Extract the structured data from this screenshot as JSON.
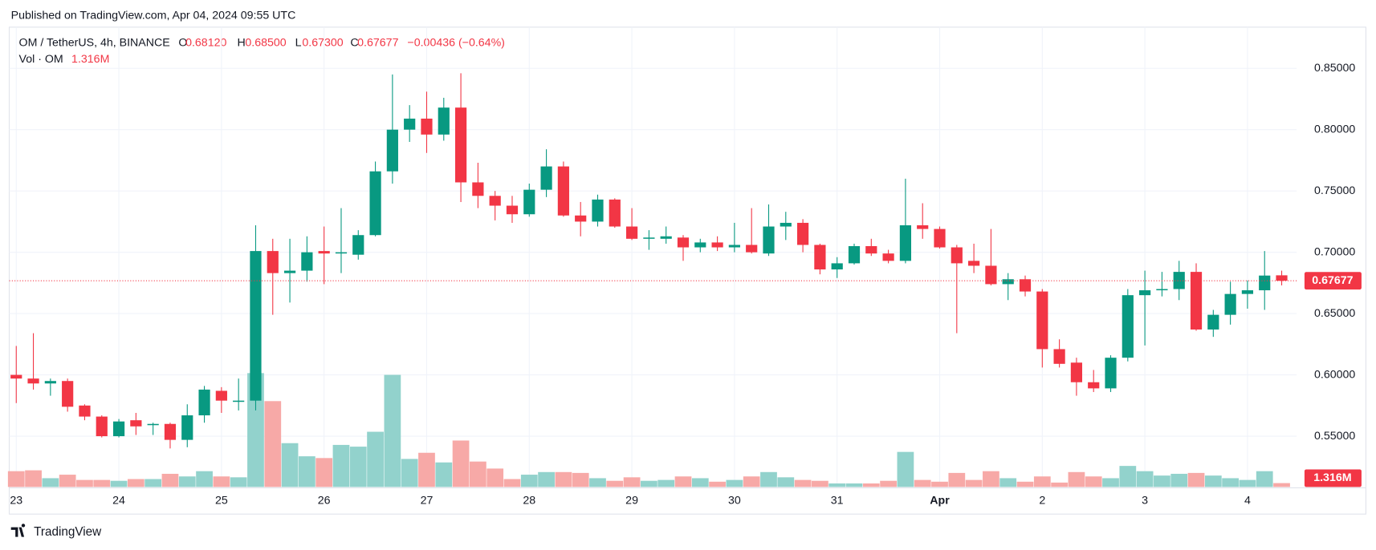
{
  "published": "Published on TradingView.com, Apr 04, 2024 09:55 UTC",
  "footer": "TradingView",
  "chart_data": {
    "type": "candlestick",
    "legend": {
      "symbol": "OM / TetherUS, 4h, BINANCE",
      "ohlc": [
        {
          "label": "O",
          "value": "0.68120"
        },
        {
          "label": "H",
          "value": "0.68500"
        },
        {
          "label": "L",
          "value": "0.67300"
        },
        {
          "label": "C",
          "value": "0.67677"
        }
      ],
      "change": "−0.00436 (−0.64%)",
      "volume_name": "Vol · OM",
      "volume": "1.316M"
    },
    "categories": [
      "23",
      null,
      null,
      null,
      null,
      null,
      "24",
      null,
      null,
      null,
      null,
      null,
      "25",
      null,
      null,
      null,
      null,
      null,
      "26",
      null,
      null,
      null,
      null,
      null,
      "27",
      null,
      null,
      null,
      null,
      null,
      "28",
      null,
      null,
      null,
      null,
      null,
      "29",
      null,
      null,
      null,
      null,
      null,
      "30",
      null,
      null,
      null,
      null,
      null,
      "31",
      null,
      null,
      null,
      null,
      null,
      "Apr",
      null,
      null,
      null,
      null,
      null,
      "2",
      null,
      null,
      null,
      null,
      null,
      "3",
      null,
      null,
      null,
      null,
      null,
      "4",
      null,
      null
    ],
    "open": [
      0.6,
      0.597,
      0.593,
      0.595,
      0.575,
      0.566,
      0.55,
      0.563,
      0.559,
      0.56,
      0.547,
      0.567,
      0.587,
      0.578,
      0.579,
      0.701,
      0.683,
      0.685,
      0.701,
      0.699,
      0.698,
      0.714,
      0.766,
      0.8,
      0.809,
      0.796,
      0.818,
      0.757,
      0.746,
      0.738,
      0.731,
      0.751,
      0.77,
      0.73,
      0.725,
      0.743,
      0.721,
      0.711,
      0.711,
      0.712,
      0.704,
      0.708,
      0.704,
      0.706,
      0.699,
      0.721,
      0.724,
      0.706,
      0.686,
      0.691,
      0.705,
      0.699,
      0.693,
      0.722,
      0.719,
      0.704,
      0.693,
      0.689,
      0.674,
      0.678,
      0.668,
      0.621,
      0.61,
      0.594,
      0.589,
      0.614,
      0.665,
      0.669,
      0.67,
      0.684,
      0.637,
      0.649,
      0.666,
      0.669,
      0.6812
    ],
    "high": [
      0.6236,
      0.634,
      0.597,
      0.597,
      0.576,
      0.567,
      0.564,
      0.569,
      0.561,
      0.561,
      0.576,
      0.591,
      0.59,
      0.597,
      0.722,
      0.711,
      0.711,
      0.713,
      0.721,
      0.736,
      0.718,
      0.774,
      0.845,
      0.82,
      0.831,
      0.826,
      0.846,
      0.773,
      0.75,
      0.746,
      0.756,
      0.784,
      0.774,
      0.741,
      0.747,
      0.744,
      0.736,
      0.718,
      0.721,
      0.714,
      0.711,
      0.713,
      0.724,
      0.736,
      0.739,
      0.733,
      0.727,
      0.707,
      0.696,
      0.707,
      0.711,
      0.702,
      0.76,
      0.74,
      0.721,
      0.706,
      0.707,
      0.719,
      0.683,
      0.681,
      0.67,
      0.629,
      0.614,
      0.604,
      0.616,
      0.67,
      0.685,
      0.684,
      0.693,
      0.691,
      0.653,
      0.676,
      0.677,
      0.701,
      0.685
    ],
    "low": [
      0.577,
      0.588,
      0.583,
      0.57,
      0.563,
      0.549,
      0.549,
      0.551,
      0.551,
      0.54,
      0.541,
      0.561,
      0.569,
      0.571,
      0.571,
      0.649,
      0.659,
      0.676,
      0.674,
      0.683,
      0.694,
      0.713,
      0.756,
      0.79,
      0.781,
      0.791,
      0.741,
      0.736,
      0.726,
      0.724,
      0.729,
      0.745,
      0.729,
      0.713,
      0.721,
      0.72,
      0.71,
      0.702,
      0.707,
      0.693,
      0.7,
      0.701,
      0.7,
      0.699,
      0.697,
      0.71,
      0.7,
      0.682,
      0.679,
      0.69,
      0.697,
      0.691,
      0.691,
      0.711,
      0.703,
      0.634,
      0.683,
      0.673,
      0.661,
      0.664,
      0.606,
      0.606,
      0.583,
      0.586,
      0.586,
      0.611,
      0.624,
      0.664,
      0.661,
      0.636,
      0.631,
      0.641,
      0.654,
      0.653,
      0.673
    ],
    "close": [
      0.597,
      0.593,
      0.595,
      0.574,
      0.566,
      0.55,
      0.562,
      0.558,
      0.56,
      0.547,
      0.567,
      0.588,
      0.579,
      0.579,
      0.701,
      0.683,
      0.685,
      0.7,
      0.699,
      0.7,
      0.714,
      0.766,
      0.8,
      0.809,
      0.796,
      0.818,
      0.757,
      0.746,
      0.738,
      0.731,
      0.751,
      0.77,
      0.73,
      0.725,
      0.743,
      0.721,
      0.711,
      0.712,
      0.713,
      0.704,
      0.708,
      0.704,
      0.706,
      0.7,
      0.721,
      0.724,
      0.706,
      0.686,
      0.691,
      0.705,
      0.699,
      0.693,
      0.722,
      0.719,
      0.704,
      0.691,
      0.689,
      0.674,
      0.678,
      0.668,
      0.621,
      0.609,
      0.594,
      0.589,
      0.614,
      0.665,
      0.669,
      0.67,
      0.684,
      0.637,
      0.649,
      0.666,
      0.669,
      0.681,
      0.67677
    ],
    "volume": [
      5.4,
      5.7,
      3.0,
      4.2,
      2.4,
      2.4,
      2.1,
      2.7,
      2.7,
      4.5,
      3.6,
      5.4,
      3.6,
      3.3,
      39.0,
      29.4,
      15.0,
      10.5,
      9.9,
      14.4,
      13.8,
      18.9,
      38.4,
      9.6,
      11.7,
      8.4,
      15.9,
      8.7,
      6.3,
      2.7,
      4.2,
      5.1,
      5.1,
      4.8,
      3.0,
      2.1,
      3.3,
      2.1,
      2.4,
      3.6,
      3.0,
      1.8,
      2.4,
      3.6,
      5.1,
      3.3,
      2.4,
      2.1,
      1.2,
      1.2,
      1.2,
      2.1,
      12.0,
      2.4,
      1.8,
      4.8,
      2.4,
      5.4,
      3.0,
      1.8,
      3.6,
      1.5,
      5.1,
      3.6,
      3.0,
      7.2,
      5.4,
      3.9,
      4.5,
      4.8,
      3.9,
      3.0,
      2.4,
      5.4,
      1.316
    ],
    "volume_label": "1.316M",
    "up_color": "#089981",
    "down_color": "#f23645",
    "up_volume_color": "#92d2cc",
    "down_volume_color": "#f7a9a7",
    "ylim": [
      0.5086,
      0.8836
    ],
    "yticks": [
      {
        "value": 0.55,
        "label": "0.55000"
      },
      {
        "value": 0.6,
        "label": "0.60000"
      },
      {
        "value": 0.65,
        "label": "0.65000"
      },
      {
        "value": 0.7,
        "label": "0.70000"
      },
      {
        "value": 0.75,
        "label": "0.75000"
      },
      {
        "value": 0.8,
        "label": "0.80000"
      },
      {
        "value": 0.85,
        "label": "0.85000"
      }
    ],
    "volume_lim": [
      0,
      60
    ],
    "grid": true
  }
}
